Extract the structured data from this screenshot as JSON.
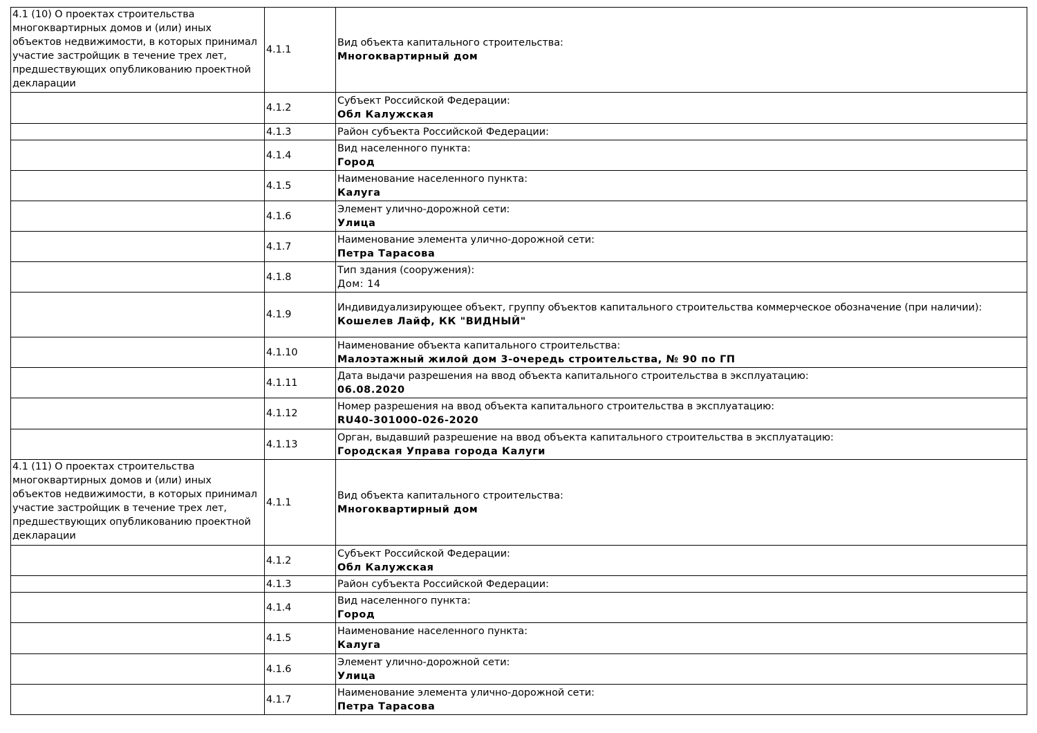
{
  "sections": [
    {
      "header": "4.1 (10) О проектах строительства многоквартирных домов и (или) иных объектов недвижимости, в которых принимал участие застройщик в течение трех лет, предшествующих опубликованию проектной декларации",
      "rows": [
        {
          "code": "4.1.1",
          "label": "Вид объекта капитального строительства:",
          "value": "Многоквартирный дом"
        },
        {
          "code": "4.1.2",
          "label": "Субъект Российской Федерации:",
          "value": "Обл Калужская"
        },
        {
          "code": "4.1.3",
          "label": "Район субъекта Российской Федерации:",
          "value": ""
        },
        {
          "code": "4.1.4",
          "label": "Вид населенного пункта:",
          "value": "Город"
        },
        {
          "code": "4.1.5",
          "label": "Наименование населенного пункта:",
          "value": "Калуга"
        },
        {
          "code": "4.1.6",
          "label": "Элемент улично-дорожной сети:",
          "value": "Улица"
        },
        {
          "code": "4.1.7",
          "label": "Наименование элемента улично-дорожной сети:",
          "value": "Петра Тарасова"
        },
        {
          "code": "4.1.8",
          "label": "Тип здания (сооружения):",
          "value": "Дом: 14",
          "plain": true
        },
        {
          "code": "4.1.9",
          "label": "Индивидуализирующее объект, группу объектов капитального строительства коммерческое обозначение (при наличии):",
          "value": "Кошелев Лайф, КК \"ВИДНЫЙ\""
        },
        {
          "code": "4.1.10",
          "label": "Наименование объекта капитального строительства:",
          "value": "Малоэтажный жилой дом 3-очередь строительства, № 90 по ГП"
        },
        {
          "code": "4.1.11",
          "label": "Дата выдачи разрешения на ввод объекта капитального строительства в эксплуатацию:",
          "value": "06.08.2020"
        },
        {
          "code": "4.1.12",
          "label": "Номер разрешения на ввод объекта капитального строительства в эксплуатацию:",
          "value": "RU40-301000-026-2020"
        },
        {
          "code": "4.1.13",
          "label": "Орган, выдавший разрешение на ввод объекта капитального строительства в эксплуатацию:",
          "value": "Городская Управа города Калуги"
        }
      ]
    },
    {
      "header": "4.1 (11) О проектах строительства многоквартирных домов и (или) иных объектов недвижимости, в которых принимал участие застройщик в течение трех лет, предшествующих опубликованию проектной декларации",
      "rows": [
        {
          "code": "4.1.1",
          "label": "Вид объекта капитального строительства:",
          "value": "Многоквартирный дом"
        },
        {
          "code": "4.1.2",
          "label": "Субъект Российской Федерации:",
          "value": "Обл Калужская"
        },
        {
          "code": "4.1.3",
          "label": "Район субъекта Российской Федерации:",
          "value": ""
        },
        {
          "code": "4.1.4",
          "label": "Вид населенного пункта:",
          "value": "Город"
        },
        {
          "code": "4.1.5",
          "label": "Наименование населенного пункта:",
          "value": "Калуга"
        },
        {
          "code": "4.1.6",
          "label": "Элемент улично-дорожной сети:",
          "value": "Улица"
        },
        {
          "code": "4.1.7",
          "label": "Наименование элемента улично-дорожной сети:",
          "value": "Петра Тарасова"
        }
      ]
    }
  ]
}
